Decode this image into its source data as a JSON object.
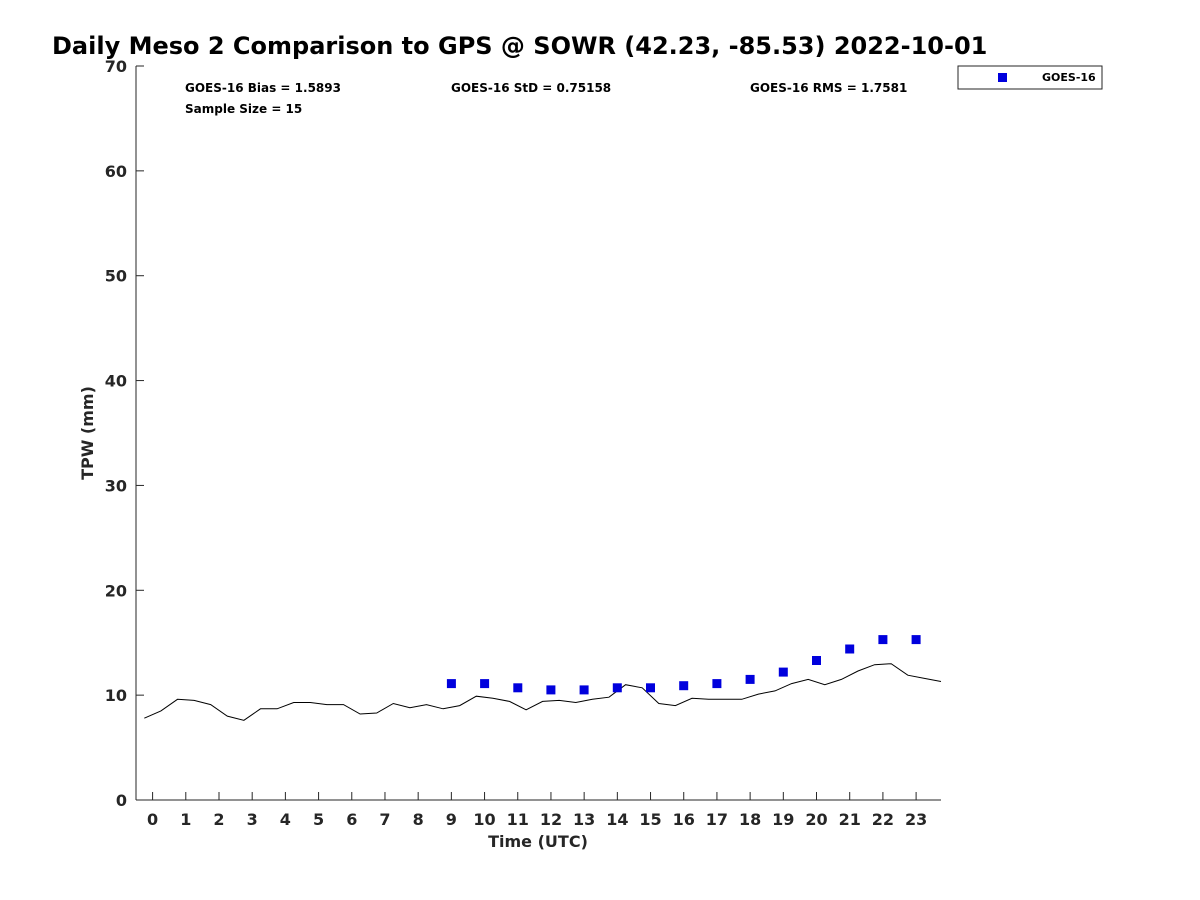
{
  "chart_data": {
    "type": "line",
    "title": "Daily Meso 2 Comparison to GPS @ SOWR (42.23, -85.53) 2022-10-01",
    "xlabel": "Time (UTC)",
    "ylabel": "TPW (mm)",
    "xlim": [
      -0.5,
      23.75
    ],
    "ylim": [
      0,
      70
    ],
    "xticks": [
      "0",
      "1",
      "2",
      "3",
      "4",
      "5",
      "6",
      "7",
      "8",
      "9",
      "10",
      "11",
      "12",
      "13",
      "14",
      "15",
      "16",
      "17",
      "18",
      "19",
      "20",
      "21",
      "22",
      "23"
    ],
    "yticks": [
      "0",
      "10",
      "20",
      "30",
      "40",
      "50",
      "60",
      "70"
    ],
    "grid": false,
    "legend_position": "top-right",
    "series": [
      {
        "style": "line",
        "color": "#000000",
        "x": [
          -0.25,
          0.25,
          0.75,
          1.25,
          1.75,
          2.25,
          2.75,
          3.25,
          3.75,
          4.25,
          4.75,
          5.25,
          5.75,
          6.25,
          6.75,
          7.25,
          7.75,
          8.25,
          8.75,
          9.25,
          9.75,
          10.25,
          10.75,
          11.25,
          11.75,
          12.25,
          12.75,
          13.25,
          13.75,
          14.25,
          14.75,
          15.25,
          15.75,
          16.25,
          16.75,
          17.25,
          17.75,
          18.25,
          18.75,
          19.25,
          19.75,
          20.25,
          20.75,
          21.25,
          21.75,
          22.25,
          22.75,
          23.25,
          23.75
        ],
        "values": [
          7.8,
          8.5,
          9.6,
          9.5,
          9.1,
          8.0,
          7.6,
          8.7,
          8.7,
          9.3,
          9.3,
          9.1,
          9.1,
          8.2,
          8.3,
          9.2,
          8.8,
          9.1,
          8.7,
          9.0,
          9.9,
          9.7,
          9.4,
          8.6,
          9.4,
          9.5,
          9.3,
          9.6,
          9.8,
          11.0,
          10.7,
          9.2,
          9.0,
          9.7,
          9.6,
          9.6,
          9.6,
          10.1,
          10.4,
          11.1,
          11.5,
          11.0,
          11.5,
          12.3,
          12.9,
          13.0,
          11.9,
          11.6,
          11.3
        ]
      },
      {
        "name": "GOES-16",
        "style": "marker-square",
        "color": "#0000dd",
        "x": [
          9,
          10,
          11,
          12,
          13,
          14,
          15,
          16,
          17,
          18,
          19,
          20,
          21,
          22,
          23
        ],
        "values": [
          11.1,
          11.1,
          10.7,
          10.5,
          10.5,
          10.7,
          10.7,
          10.9,
          11.1,
          11.5,
          12.2,
          13.3,
          14.4,
          15.3,
          15.3
        ]
      }
    ],
    "annotations": {
      "bias": "GOES-16 Bias = 1.5893",
      "std": "GOES-16 StD = 0.75158",
      "rms": "GOES-16 RMS = 1.7581",
      "sample": "Sample Size = 15"
    }
  }
}
